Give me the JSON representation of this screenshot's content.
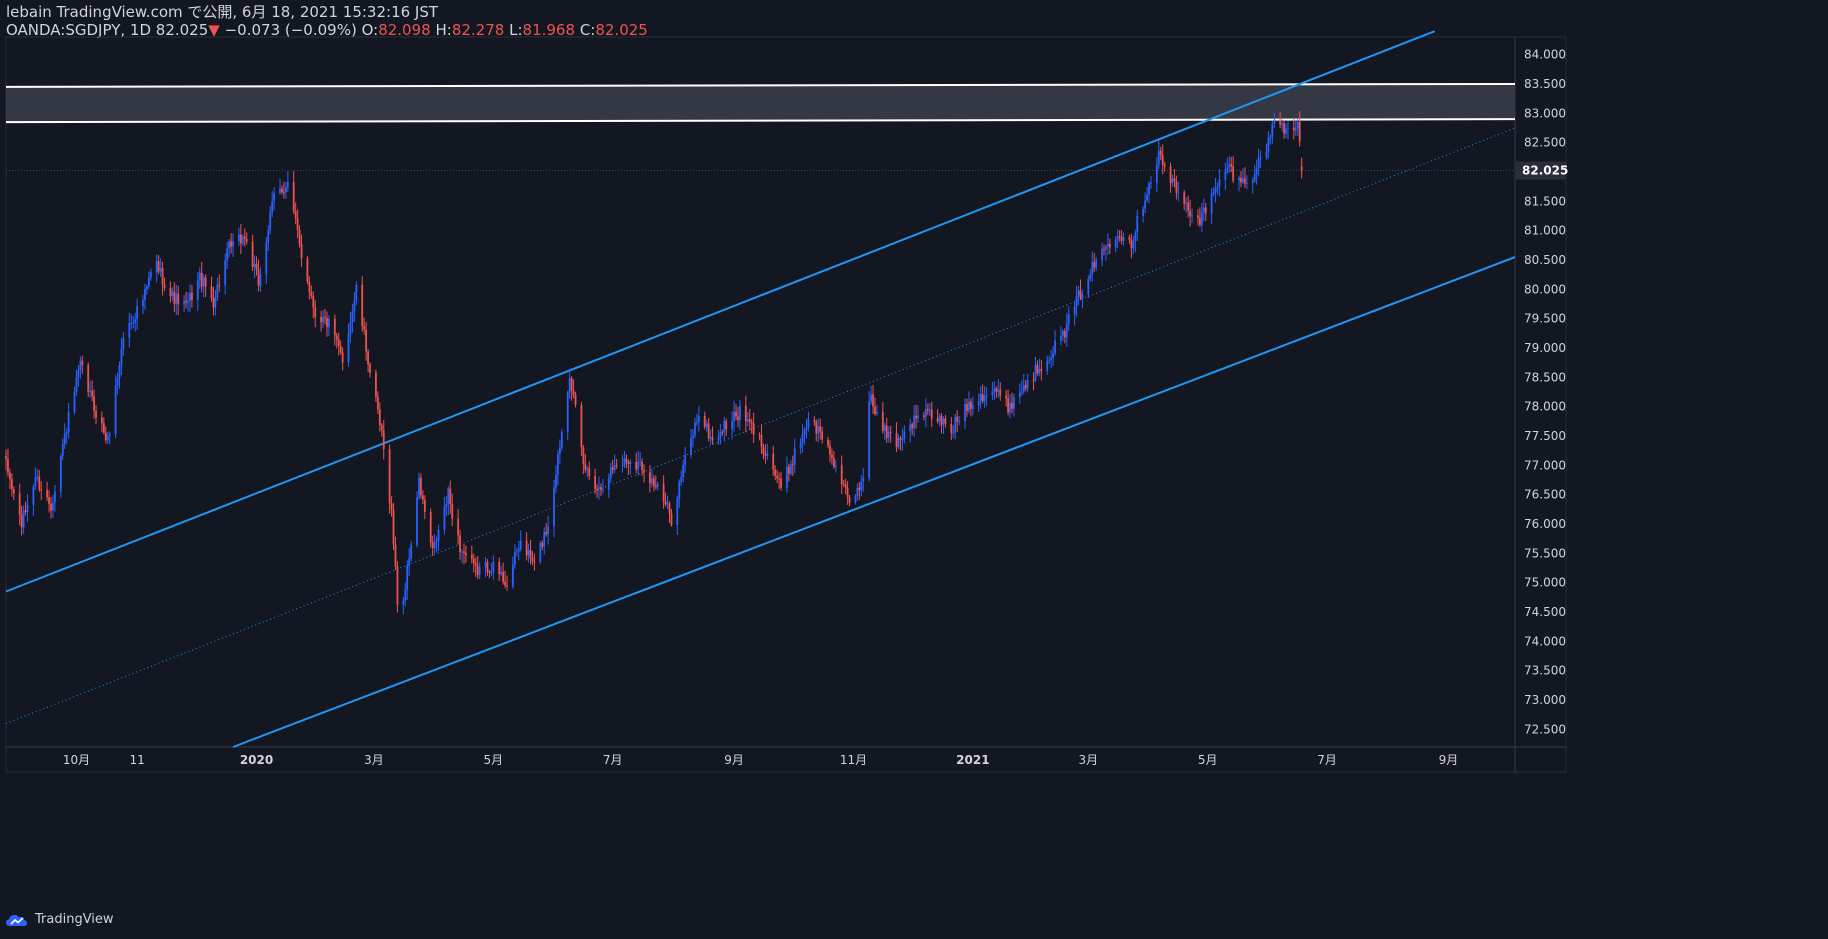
{
  "header": {
    "published": "lebain TradingView.com で公開, 6月 18, 2021 15:32:16 JST",
    "symbol": "OANDA:SGDJPY, 1D",
    "last": "82.025",
    "change_arrow": "▼",
    "change": "−0.073 (−0.09%)",
    "o_label": "O:",
    "o_val": "82.098",
    "h_label": "H:",
    "h_val": "82.278",
    "l_label": "L:",
    "l_val": "81.968",
    "c_label": "C:",
    "c_val": "82.025"
  },
  "footer": {
    "brand": "TradingView",
    "logo_icon": "tradingview-cloud-logo"
  },
  "colors": {
    "background": "#131722",
    "bull": "#2962ff",
    "bear": "#ef5350",
    "channel": "#2196f3",
    "zone_fill": "#3a3e4a",
    "zone_line": "#ffffff",
    "axis_text": "#d1d4dc",
    "price_label_bg": "#2a2e39"
  },
  "chart_data": {
    "type": "candlestick",
    "symbol": "OANDA:SGDJPY",
    "interval": "1D",
    "ylim": [
      72.2,
      84.3
    ],
    "yticks": [
      "72.500",
      "73.000",
      "73.500",
      "74.000",
      "74.500",
      "75.000",
      "75.500",
      "76.000",
      "76.500",
      "77.000",
      "77.500",
      "78.000",
      "78.500",
      "79.000",
      "79.500",
      "80.000",
      "80.500",
      "81.000",
      "81.500",
      "82.000",
      "82.500",
      "83.000",
      "83.500",
      "84.000"
    ],
    "last_price_label": "82.025",
    "last_price": 82.025,
    "x_domain": [
      "2019-08-26",
      "2021-10-05"
    ],
    "xticks": [
      {
        "label": "10月",
        "date": "2019-10-01"
      },
      {
        "label": "11",
        "date": "2019-11-01"
      },
      {
        "label": "2020",
        "date": "2020-01-01"
      },
      {
        "label": "3月",
        "date": "2020-03-01"
      },
      {
        "label": "5月",
        "date": "2020-05-01"
      },
      {
        "label": "7月",
        "date": "2020-07-01"
      },
      {
        "label": "9月",
        "date": "2020-09-01"
      },
      {
        "label": "11月",
        "date": "2020-11-01"
      },
      {
        "label": "2021",
        "date": "2021-01-01"
      },
      {
        "label": "3月",
        "date": "2021-03-01"
      },
      {
        "label": "5月",
        "date": "2021-05-01"
      },
      {
        "label": "7月",
        "date": "2021-07-01"
      },
      {
        "label": "9月",
        "date": "2021-09-01"
      }
    ],
    "close_path": [
      [
        "2019-08-26",
        77.0
      ],
      [
        "2019-09-03",
        76.0
      ],
      [
        "2019-09-10",
        76.8
      ],
      [
        "2019-09-18",
        76.3
      ],
      [
        "2019-09-25",
        77.5
      ],
      [
        "2019-10-03",
        78.7
      ],
      [
        "2019-10-10",
        78.0
      ],
      [
        "2019-10-17",
        77.4
      ],
      [
        "2019-10-25",
        79.2
      ],
      [
        "2019-11-05",
        79.9
      ],
      [
        "2019-11-10",
        80.5
      ],
      [
        "2019-11-18",
        79.9
      ],
      [
        "2019-11-26",
        79.7
      ],
      [
        "2019-12-03",
        80.2
      ],
      [
        "2019-12-10",
        79.8
      ],
      [
        "2019-12-18",
        80.7
      ],
      [
        "2019-12-26",
        80.9
      ],
      [
        "2020-01-02",
        80.1
      ],
      [
        "2020-01-10",
        81.6
      ],
      [
        "2020-01-17",
        81.8
      ],
      [
        "2020-01-24",
        80.6
      ],
      [
        "2020-01-31",
        79.6
      ],
      [
        "2020-02-07",
        79.4
      ],
      [
        "2020-02-14",
        78.8
      ],
      [
        "2020-02-21",
        80.0
      ],
      [
        "2020-02-28",
        78.6
      ],
      [
        "2020-03-05",
        77.5
      ],
      [
        "2020-03-10",
        76.2
      ],
      [
        "2020-03-14",
        74.2
      ],
      [
        "2020-03-18",
        75.2
      ],
      [
        "2020-03-24",
        76.7
      ],
      [
        "2020-03-31",
        75.5
      ],
      [
        "2020-04-08",
        76.5
      ],
      [
        "2020-04-14",
        75.6
      ],
      [
        "2020-04-22",
        75.2
      ],
      [
        "2020-04-30",
        75.3
      ],
      [
        "2020-05-08",
        75.0
      ],
      [
        "2020-05-15",
        75.7
      ],
      [
        "2020-05-22",
        75.3
      ],
      [
        "2020-05-29",
        76.0
      ],
      [
        "2020-06-05",
        77.6
      ],
      [
        "2020-06-09",
        78.6
      ],
      [
        "2020-06-16",
        77.0
      ],
      [
        "2020-06-24",
        76.6
      ],
      [
        "2020-07-02",
        77.0
      ],
      [
        "2020-07-09",
        77.1
      ],
      [
        "2020-07-16",
        77.0
      ],
      [
        "2020-07-24",
        76.6
      ],
      [
        "2020-07-31",
        76.1
      ],
      [
        "2020-08-07",
        77.1
      ],
      [
        "2020-08-14",
        77.9
      ],
      [
        "2020-08-21",
        77.4
      ],
      [
        "2020-08-28",
        77.7
      ],
      [
        "2020-09-04",
        77.9
      ],
      [
        "2020-09-11",
        77.6
      ],
      [
        "2020-09-18",
        77.2
      ],
      [
        "2020-09-25",
        76.6
      ],
      [
        "2020-10-02",
        77.2
      ],
      [
        "2020-10-09",
        77.8
      ],
      [
        "2020-10-16",
        77.5
      ],
      [
        "2020-10-23",
        77.0
      ],
      [
        "2020-10-30",
        76.3
      ],
      [
        "2020-11-06",
        76.8
      ],
      [
        "2020-11-09",
        78.2
      ],
      [
        "2020-11-16",
        77.6
      ],
      [
        "2020-11-23",
        77.4
      ],
      [
        "2020-11-30",
        77.7
      ],
      [
        "2020-12-07",
        77.9
      ],
      [
        "2020-12-14",
        77.8
      ],
      [
        "2020-12-21",
        77.6
      ],
      [
        "2020-12-28",
        78.0
      ],
      [
        "2021-01-05",
        78.2
      ],
      [
        "2021-01-12",
        78.3
      ],
      [
        "2021-01-19",
        78.0
      ],
      [
        "2021-01-26",
        78.3
      ],
      [
        "2021-02-02",
        78.6
      ],
      [
        "2021-02-09",
        78.9
      ],
      [
        "2021-02-16",
        79.2
      ],
      [
        "2021-02-23",
        79.8
      ],
      [
        "2021-03-02",
        80.3
      ],
      [
        "2021-03-09",
        80.7
      ],
      [
        "2021-03-16",
        81.0
      ],
      [
        "2021-03-23",
        80.8
      ],
      [
        "2021-03-30",
        81.6
      ],
      [
        "2021-04-06",
        82.3
      ],
      [
        "2021-04-13",
        81.8
      ],
      [
        "2021-04-20",
        81.4
      ],
      [
        "2021-04-27",
        81.2
      ],
      [
        "2021-05-04",
        81.6
      ],
      [
        "2021-05-11",
        82.1
      ],
      [
        "2021-05-18",
        81.8
      ],
      [
        "2021-05-25",
        82.0
      ],
      [
        "2021-06-01",
        82.5
      ],
      [
        "2021-06-04",
        82.95
      ],
      [
        "2021-06-09",
        82.7
      ],
      [
        "2021-06-14",
        82.8
      ],
      [
        "2021-06-16",
        82.9
      ],
      [
        "2021-06-18",
        82.025
      ]
    ],
    "channel": {
      "upper": [
        [
          "2019-08-26",
          74.85
        ],
        [
          "2021-08-25",
          84.4
        ]
      ],
      "middle": [
        [
          "2019-08-26",
          72.6
        ],
        [
          "2021-10-05",
          82.75
        ]
      ],
      "lower": [
        [
          "2019-12-20",
          72.2
        ],
        [
          "2021-10-05",
          80.55
        ]
      ]
    },
    "resistance_zone": {
      "top": [
        [
          "2019-08-26",
          83.45
        ],
        [
          "2021-10-05",
          83.5
        ]
      ],
      "bottom": [
        [
          "2019-08-26",
          82.85
        ],
        [
          "2021-10-05",
          82.9
        ]
      ]
    }
  }
}
